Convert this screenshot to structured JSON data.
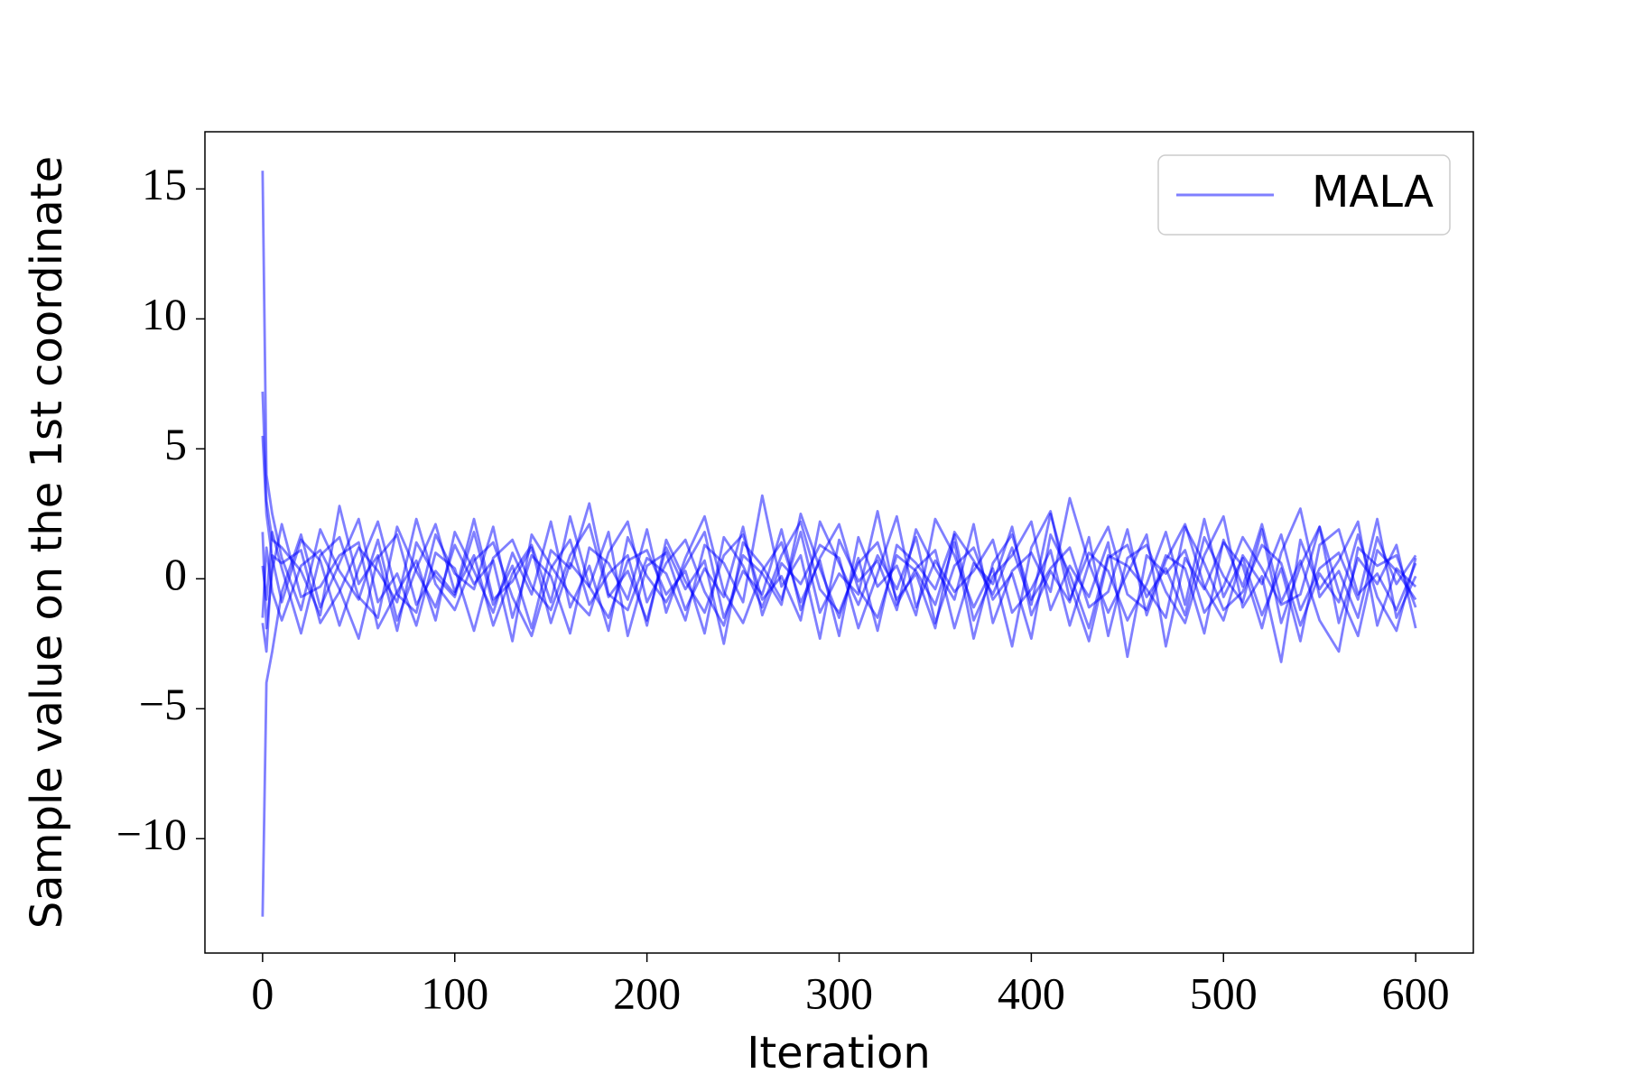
{
  "chart_data": {
    "type": "line",
    "xlabel": "Iteration",
    "ylabel": "Sample value on the 1st coordinate",
    "x": [
      0,
      2,
      5,
      10,
      20,
      30,
      40,
      50,
      60,
      70,
      80,
      90,
      100,
      110,
      120,
      130,
      140,
      150,
      160,
      170,
      180,
      190,
      200,
      210,
      220,
      230,
      240,
      250,
      260,
      270,
      280,
      290,
      300,
      310,
      320,
      330,
      340,
      350,
      360,
      370,
      380,
      390,
      400,
      410,
      420,
      430,
      440,
      450,
      460,
      470,
      480,
      490,
      500,
      510,
      520,
      530,
      540,
      550,
      560,
      570,
      580,
      590,
      600
    ],
    "xlim": [
      -30,
      630
    ],
    "xticks": [
      0,
      100,
      200,
      300,
      400,
      500,
      600
    ],
    "ylim": [
      -14.4,
      17.2
    ],
    "yticks": [
      {
        "value": -10,
        "label": "−10"
      },
      {
        "value": -5,
        "label": "−5"
      },
      0,
      5,
      10,
      15
    ],
    "line_alpha": 0.5,
    "legend": "upper right",
    "series": [
      {
        "name": "MALA",
        "color": "#0000ff",
        "values": [
          15.7,
          4,
          2.5,
          0.8,
          -1.2,
          1.9,
          0.3,
          -0.8,
          1.5,
          -1.6,
          0.4,
          2.1,
          -0.5,
          0.9,
          -1.8,
          0.2,
          1.3,
          -0.9,
          2.4,
          -0.3,
          -1.5,
          0.7,
          1.1,
          -0.6,
          0.3,
          -2.1,
          1.6,
          0.5,
          -1.1,
          0.9,
          2.2,
          -0.4,
          -1.3,
          0.6,
          1.4,
          -0.8,
          0.2,
          -1.9,
          1.8,
          0.7,
          -0.6,
          1.2,
          -1.0,
          2.5,
          -0.2,
          -2.4,
          0.8,
          1.3,
          -0.7,
          0.4,
          -1.4,
          1.6,
          0.1,
          -0.9,
          1.9,
          -1.7,
          0.5,
          2.0,
          -0.5,
          -2.2,
          1.1,
          0.3,
          -0.8
        ]
      },
      {
        "color": "#0000ff",
        "values": [
          -13,
          -4,
          -2.8,
          -0.5,
          1.7,
          -1.1,
          0.6,
          2.3,
          -0.9,
          0.2,
          -1.8,
          1.0,
          0.4,
          -2.0,
          0.8,
          1.5,
          -0.3,
          -1.2,
          0.9,
          2.1,
          -0.7,
          0.3,
          -1.6,
          1.2,
          -0.4,
          0.7,
          -2.5,
          1.4,
          0.5,
          -0.8,
          1.8,
          -1.3,
          0.2,
          -0.6,
          2.6,
          -1.0,
          0.4,
          1.1,
          -1.9,
          0.6,
          -0.2,
          2.0,
          -1.4,
          0.3,
          -0.9,
          1.6,
          -2.2,
          0.8,
          1.3,
          -0.5,
          -1.7,
          0.9,
          2.4,
          -1.1,
          0.1,
          -3.2,
          1.5,
          -0.4,
          0.7,
          2.2,
          -1.8,
          0.4,
          -0.3
        ]
      },
      {
        "color": "#0000ff",
        "values": [
          7.2,
          3.0,
          1.5,
          1.2,
          0.3,
          -1.4,
          2.8,
          -0.2,
          0.9,
          -2.0,
          1.4,
          0.1,
          -0.7,
          1.8,
          -1.0,
          0.5,
          -1.9,
          1.1,
          0.4,
          2.9,
          -0.6,
          -1.2,
          0.8,
          0.2,
          -1.6,
          1.3,
          0.6,
          -0.9,
          3.2,
          -0.3,
          0.9,
          -2.3,
          1.5,
          -0.1,
          0.7,
          -1.2,
          1.9,
          0.4,
          -0.8,
          2.1,
          -1.7,
          0.3,
          1.0,
          -0.5,
          3.1,
          0.6,
          -1.3,
          0.2,
          1.7,
          -2.6,
          0.8,
          -0.4,
          1.4,
          0.5,
          -1.9,
          1.0,
          2.7,
          -0.7,
          0.3,
          -1.5,
          1.6,
          -0.2,
          0.9
        ]
      },
      {
        "color": "#0000ff",
        "values": [
          5.5,
          2.5,
          0.8,
          -0.9,
          1.5,
          0.7,
          -1.8,
          0.4,
          2.2,
          -0.6,
          -1.3,
          1.7,
          0.2,
          -0.4,
          2.0,
          -1.5,
          0.9,
          0.1,
          -2.1,
          1.2,
          0.6,
          -0.8,
          1.9,
          -1.3,
          0.8,
          2.4,
          -0.5,
          -1.7,
          0.3,
          1.4,
          -0.9,
          0.7,
          -2.2,
          1.6,
          -0.3,
          0.5,
          -1.4,
          2.3,
          0.9,
          -1.1,
          0.4,
          -2.6,
          1.2,
          2.6,
          -0.8,
          1.0,
          0.3,
          -1.6,
          -0.2,
          1.8,
          -1.0,
          2.3,
          -0.7,
          0.8,
          -1.4,
          0.4,
          -2.4,
          1.3,
          1.9,
          -0.6,
          0.2,
          -1.2,
          0.6
        ]
      },
      {
        "color": "#0000ff",
        "values": [
          0.5,
          -0.8,
          1.8,
          0.4,
          -2.1,
          0.9,
          1.6,
          -0.7,
          -1.5,
          2.0,
          0.3,
          -1.1,
          1.3,
          -0.2,
          0.7,
          -2.4,
          1.7,
          0.5,
          -0.6,
          -1.4,
          1.0,
          2.2,
          -0.9,
          0.6,
          1.5,
          -0.5,
          -1.8,
          0.9,
          0.2,
          -1.0,
          2.5,
          0.4,
          -1.5,
          0.8,
          -2.0,
          1.3,
          0.6,
          -0.4,
          1.7,
          -1.6,
          0.1,
          0.9,
          2.2,
          -1.2,
          0.5,
          -0.7,
          1.4,
          -3.0,
          0.9,
          0.2,
          1.1,
          -1.3,
          -0.3,
          1.6,
          0.4,
          -1.0,
          -0.6,
          2.0,
          -1.7,
          0.8,
          -0.2,
          1.3,
          -1.9
        ]
      },
      {
        "color": "#0000ff",
        "values": [
          -1.5,
          1.2,
          -0.5,
          -1.6,
          0.5,
          1.1,
          -0.4,
          -2.3,
          0.8,
          1.7,
          -1.0,
          0.3,
          -0.6,
          2.3,
          -0.8,
          -0.1,
          1.2,
          -1.7,
          0.6,
          -0.3,
          1.8,
          -2.2,
          0.5,
          1.0,
          -1.2,
          0.4,
          -0.7,
          2.0,
          -1.4,
          0.6,
          -0.2,
          1.3,
          0.8,
          -1.9,
          0.2,
          2.4,
          -1.1,
          0.7,
          -0.5,
          0.3,
          1.5,
          -1.3,
          -0.4,
          1.1,
          -1.8,
          0.6,
          2.0,
          -0.6,
          -1.2,
          0.9,
          0.4,
          -2.1,
          1.5,
          -0.3,
          2.1,
          -0.9,
          0.7,
          -1.6,
          -2.8,
          1.2,
          0.5,
          0.9,
          -1.1
        ]
      },
      {
        "color": "#0000ff",
        "values": [
          1.8,
          -1.9,
          0.3,
          2.1,
          -0.7,
          -0.3,
          0.9,
          1.4,
          -1.9,
          -0.5,
          0.7,
          -1.6,
          1.8,
          0.3,
          -1.3,
          1.0,
          -0.6,
          2.2,
          -1.1,
          0.5,
          -2.0,
          1.6,
          0.1,
          -0.9,
          0.5,
          1.8,
          -1.5,
          0.3,
          -0.6,
          1.9,
          -1.2,
          0.8,
          2.1,
          -0.4,
          -1.5,
          0.9,
          0.3,
          -1.0,
          1.4,
          -2.3,
          0.6,
          1.7,
          -0.8,
          0.4,
          1.2,
          -1.1,
          -0.5,
          1.9,
          -1.4,
          0.7,
          2.1,
          -0.3,
          -1.6,
          0.9,
          -0.2,
          1.7,
          -1.2,
          0.4,
          1.0,
          -0.8,
          2.3,
          -1.5,
          0.1
        ]
      },
      {
        "color": "#0000ff",
        "values": [
          -1.7,
          -2.8,
          0.9,
          0.6,
          1.1,
          -1.7,
          -0.5,
          1.2,
          0.3,
          -0.9,
          2.3,
          -0.2,
          -1.2,
          0.7,
          1.4,
          -0.7,
          -2.2,
          0.4,
          1.5,
          -1.0,
          0.2,
          0.9,
          -1.8,
          1.5,
          -0.1,
          -1.3,
          0.9,
          1.7,
          -0.8,
          0.1,
          -1.6,
          2.2,
          0.6,
          -1.0,
          0.9,
          -0.4,
          1.6,
          -1.7,
          0.5,
          1.2,
          -0.8,
          0.2,
          -2.3,
          1.7,
          0.2,
          -1.9,
          0.9,
          0.5,
          -0.4,
          -1.5,
          2.0,
          0.6,
          -1.2,
          -0.5,
          1.3,
          0.6,
          -1.8,
          0.2,
          -0.9,
          1.7,
          -0.7,
          -2.0,
          0.8
        ]
      }
    ]
  }
}
